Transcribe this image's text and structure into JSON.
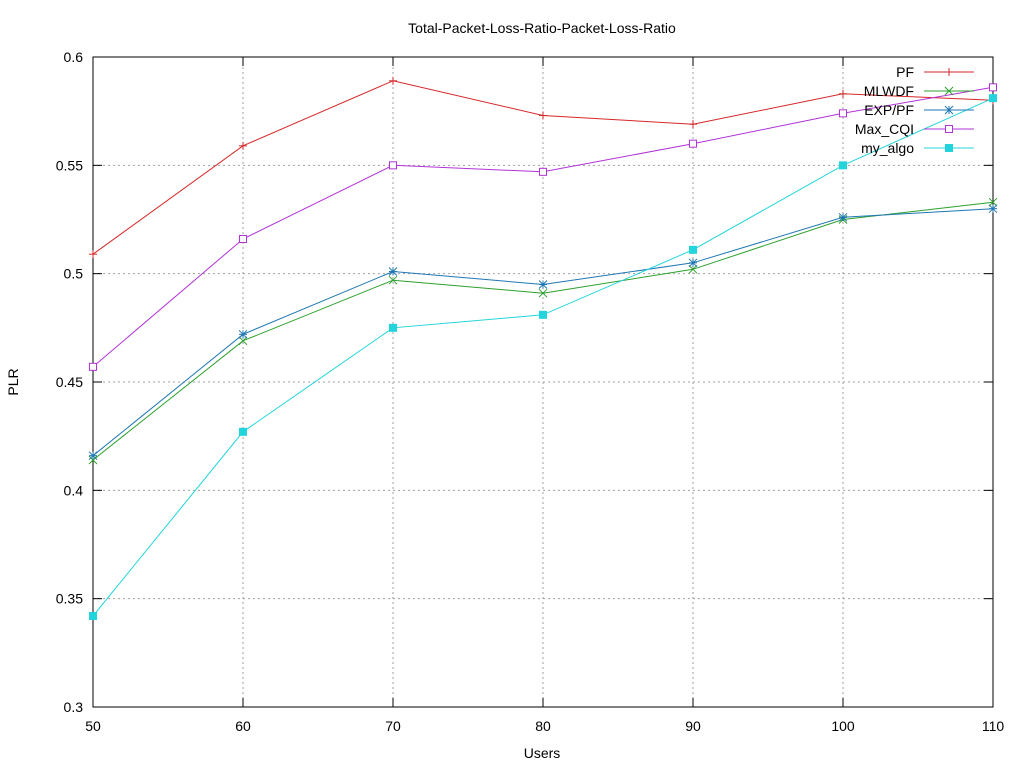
{
  "chart_data": {
    "type": "line",
    "title": "Total-Packet-Loss-Ratio-Packet-Loss-Ratio",
    "xlabel": "Users",
    "ylabel": "PLR",
    "x": [
      50,
      60,
      70,
      80,
      90,
      100,
      110
    ],
    "xticks": [
      "50",
      "60",
      "70",
      "80",
      "90",
      "100",
      "110"
    ],
    "yticks": [
      "0.3",
      "0.35",
      "0.4",
      "0.45",
      "0.5",
      "0.55",
      "0.6"
    ],
    "xlim": [
      50,
      110
    ],
    "ylim": [
      0.3,
      0.6
    ],
    "grid": true,
    "legend_position": "top-right",
    "series": [
      {
        "name": "PF",
        "color": "#d62728",
        "marker": "plus",
        "values": [
          0.509,
          0.559,
          0.589,
          0.573,
          0.569,
          0.583,
          0.58
        ]
      },
      {
        "name": "MLWDF",
        "color": "#2ca02c",
        "marker": "cross",
        "values": [
          0.414,
          0.469,
          0.497,
          0.491,
          0.502,
          0.525,
          0.533
        ]
      },
      {
        "name": "EXP/PF",
        "color": "#1f77b4",
        "marker": "star",
        "values": [
          0.416,
          0.472,
          0.501,
          0.495,
          0.505,
          0.526,
          0.53
        ]
      },
      {
        "name": "Max_CQI",
        "color": "#b233d6",
        "marker": "open-square",
        "values": [
          0.457,
          0.516,
          0.55,
          0.547,
          0.56,
          0.574,
          0.586
        ]
      },
      {
        "name": "my_algo",
        "color": "#22d4dc",
        "marker": "filled-square",
        "values": [
          0.342,
          0.427,
          0.475,
          0.481,
          0.511,
          0.55,
          0.581
        ]
      }
    ]
  }
}
